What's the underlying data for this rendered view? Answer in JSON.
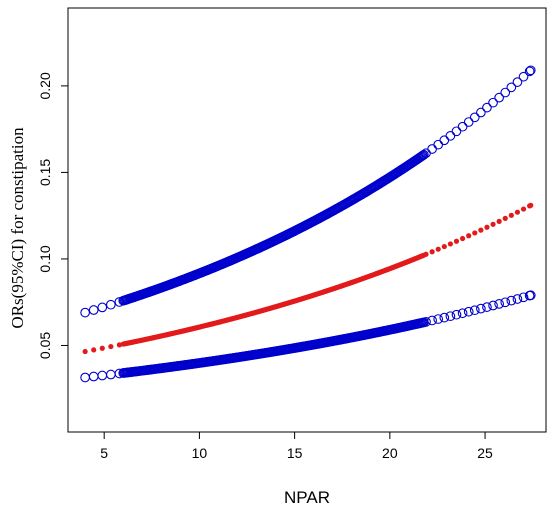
{
  "chart_data": {
    "type": "scatter",
    "title": "",
    "xlabel": "NPAR",
    "ylabel": "ORs(95%CI) for constipation",
    "xlim": [
      3.1,
      28.2
    ],
    "ylim": [
      0.0,
      0.245
    ],
    "x_ticks": [
      5,
      10,
      15,
      20,
      25
    ],
    "y_ticks": [
      0.05,
      0.1,
      0.15,
      0.2
    ],
    "x_tick_labels": [
      "5",
      "10",
      "15",
      "20",
      "25"
    ],
    "y_tick_labels": [
      "0.05",
      "0.10",
      "0.15",
      "0.20"
    ],
    "grid": false,
    "legend": "none",
    "series": [
      {
        "role": "upper-ci",
        "marker": "open-circle",
        "color": "#0000cc",
        "x_range": [
          4.0,
          27.4
        ],
        "y_range": [
          0.069,
          0.209
        ],
        "curve": "exponential"
      },
      {
        "role": "odds-ratio",
        "marker": "filled-circle",
        "color": "#e31a1c",
        "x_range": [
          4.0,
          27.4
        ],
        "y_range": [
          0.0465,
          0.131
        ],
        "curve": "exponential"
      },
      {
        "role": "lower-ci",
        "marker": "open-circle",
        "color": "#0000cc",
        "x_range": [
          4.0,
          27.4
        ],
        "y_range": [
          0.0315,
          0.079
        ],
        "curve": "exponential"
      }
    ]
  }
}
